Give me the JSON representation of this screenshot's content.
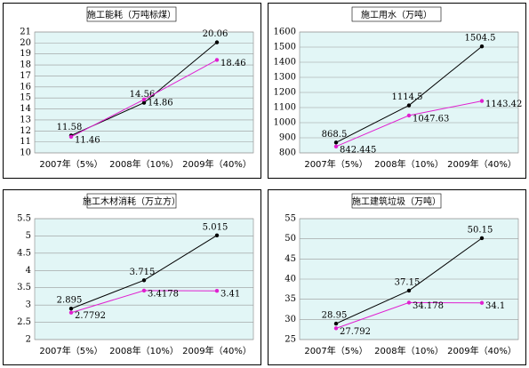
{
  "chart_data": [
    {
      "type": "line",
      "title": "施工能耗（万吨标煤）",
      "categories": [
        "2007年（5%）",
        "2008年（10%）",
        "2009年（40%）"
      ],
      "series": [
        {
          "color": "#000000",
          "values": [
            11.58,
            14.56,
            20.06
          ]
        },
        {
          "color": "#e020d0",
          "values": [
            11.46,
            14.86,
            18.46
          ]
        }
      ],
      "ylim": [
        10,
        21
      ],
      "yticks": [
        10,
        11,
        12,
        13,
        14,
        15,
        16,
        17,
        18,
        19,
        20,
        21
      ],
      "grid": true
    },
    {
      "type": "line",
      "title": "施工用水（万吨）",
      "categories": [
        "2007年（5%）",
        "2008年（10%）",
        "2009年（40%）"
      ],
      "series": [
        {
          "color": "#000000",
          "values": [
            868.5,
            1114.5,
            1504.5
          ]
        },
        {
          "color": "#e020d0",
          "values": [
            842.445,
            1047.63,
            1143.42
          ]
        }
      ],
      "ylim": [
        800,
        1600
      ],
      "yticks": [
        800,
        900,
        1000,
        1100,
        1200,
        1300,
        1400,
        1500,
        1600
      ],
      "grid": true
    },
    {
      "type": "line",
      "title": "施工木材消耗（万立方）",
      "categories": [
        "2007年（5%）",
        "2008年（10%）",
        "2009年（40%）"
      ],
      "series": [
        {
          "color": "#000000",
          "values": [
            2.895,
            3.715,
            5.015
          ]
        },
        {
          "color": "#e020d0",
          "values": [
            2.7792,
            3.4178,
            3.41
          ]
        }
      ],
      "ylim": [
        2,
        5.5
      ],
      "yticks": [
        2,
        2.5,
        3,
        3.5,
        4,
        4.5,
        5,
        5.5
      ],
      "grid": true
    },
    {
      "type": "line",
      "title": "施工建筑垃圾（万吨）",
      "categories": [
        "2007年（5%）",
        "2008年（10%）",
        "2009年（40%）"
      ],
      "series": [
        {
          "color": "#000000",
          "values": [
            28.95,
            37.15,
            50.15
          ]
        },
        {
          "color": "#e020d0",
          "values": [
            27.792,
            34.178,
            34.1
          ]
        }
      ],
      "ylim": [
        25,
        55
      ],
      "yticks": [
        25,
        30,
        35,
        40,
        45,
        50,
        55
      ],
      "grid": true
    }
  ]
}
